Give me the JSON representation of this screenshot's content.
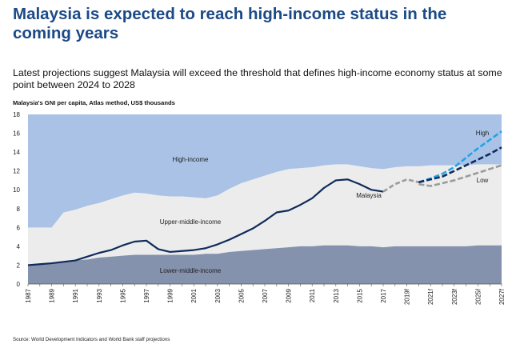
{
  "header": {
    "title": "Malaysia is expected to reach high-income status in the coming years",
    "subtitle": "Latest projections suggest Malaysia will exceed the threshold that defines high-income economy status at some point between 2024 to 2028",
    "units": "Malaysia's GNI per capita, Atlas method, US$ thousands",
    "source": "Source: World Development Indicators and World Bank staff projections"
  },
  "colors": {
    "high_income": "#a9c2e5",
    "upper_middle_income": "#ececec",
    "lower_middle_income": "#8492ae",
    "malaysia": "#0f2b5b",
    "malaysia_projection": "#9b9b9b",
    "high": "#1fa5e6",
    "baseline": "#0f2b5b",
    "low": "#9b9b9b"
  },
  "chart_data": {
    "type": "area",
    "title": "Malaysia is expected to reach high-income status in the coming years",
    "ylabel": "Malaysia's GNI per capita, Atlas method, US$ thousands",
    "ylim": [
      0,
      18
    ],
    "yticks": [
      0,
      2,
      4,
      6,
      8,
      10,
      12,
      14,
      16,
      18
    ],
    "categories": [
      "1987",
      "1988",
      "1989",
      "1990",
      "1991",
      "1992",
      "1993",
      "1994",
      "1995",
      "1996",
      "1997",
      "1998",
      "1999",
      "2000",
      "2001",
      "2002",
      "2003",
      "2004",
      "2005",
      "2006",
      "2007",
      "2008",
      "2009",
      "2010",
      "2011",
      "2012",
      "2013",
      "2014",
      "2015",
      "2016",
      "2017",
      "2018",
      "2019f",
      "2020f",
      "2021f",
      "2022f",
      "2023f",
      "2024f",
      "2025f",
      "2026f",
      "2027f"
    ],
    "tick_labels": [
      "1987",
      "1989",
      "1991",
      "1993",
      "1995",
      "1997",
      "1999",
      "2001",
      "2003",
      "2005",
      "2007",
      "2009",
      "2011",
      "2013",
      "2015",
      "2017",
      "2019f",
      "2021f",
      "2023f",
      "2025f",
      "2027f"
    ],
    "areas": [
      {
        "name": "Lower-middle-income",
        "label": "Lower-middle-income",
        "values": [
          2.0,
          2.1,
          2.2,
          2.3,
          2.5,
          2.6,
          2.8,
          2.9,
          3.0,
          3.1,
          3.1,
          3.1,
          3.1,
          3.1,
          3.1,
          3.2,
          3.2,
          3.4,
          3.5,
          3.6,
          3.7,
          3.8,
          3.9,
          4.0,
          4.0,
          4.1,
          4.1,
          4.1,
          4.0,
          4.0,
          3.9,
          4.0,
          4.0,
          4.0,
          4.0,
          4.0,
          4.0,
          4.0,
          4.1,
          4.1,
          4.1
        ]
      },
      {
        "name": "Upper-middle-income",
        "label": "Upper-middle-income",
        "values": [
          6.0,
          6.0,
          6.0,
          7.6,
          7.9,
          8.3,
          8.6,
          9.0,
          9.4,
          9.7,
          9.6,
          9.4,
          9.3,
          9.3,
          9.2,
          9.1,
          9.4,
          10.1,
          10.7,
          11.1,
          11.5,
          11.9,
          12.2,
          12.3,
          12.4,
          12.6,
          12.7,
          12.7,
          12.5,
          12.3,
          12.2,
          12.4,
          12.5,
          12.5,
          12.6,
          12.6,
          12.6,
          12.6,
          12.7,
          12.7,
          12.7
        ]
      },
      {
        "name": "High-income",
        "label": "High-income",
        "values": [
          18,
          18,
          18,
          18,
          18,
          18,
          18,
          18,
          18,
          18,
          18,
          18,
          18,
          18,
          18,
          18,
          18,
          18,
          18,
          18,
          18,
          18,
          18,
          18,
          18,
          18,
          18,
          18,
          18,
          18,
          18,
          18,
          18,
          18,
          18,
          18,
          18,
          18,
          18,
          18,
          18
        ]
      }
    ],
    "series": [
      {
        "name": "Malaysia",
        "label": "Malaysia",
        "style": "solid",
        "x": [
          "1987",
          "1988",
          "1989",
          "1990",
          "1991",
          "1992",
          "1993",
          "1994",
          "1995",
          "1996",
          "1997",
          "1998",
          "1999",
          "2000",
          "2001",
          "2002",
          "2003",
          "2004",
          "2005",
          "2006",
          "2007",
          "2008",
          "2009",
          "2010",
          "2011",
          "2012",
          "2013",
          "2014",
          "2015",
          "2016",
          "2017"
        ],
        "values": [
          2.0,
          2.1,
          2.2,
          2.35,
          2.5,
          2.9,
          3.3,
          3.6,
          4.1,
          4.5,
          4.6,
          3.7,
          3.4,
          3.5,
          3.6,
          3.8,
          4.2,
          4.7,
          5.3,
          5.9,
          6.7,
          7.6,
          7.8,
          8.4,
          9.1,
          10.2,
          11.0,
          11.1,
          10.6,
          10.0,
          9.8
        ]
      },
      {
        "name": "Malaysia projection",
        "label": "",
        "style": "dashed",
        "x": [
          "2017",
          "2018",
          "2019f",
          "2020f"
        ],
        "values": [
          9.8,
          10.6,
          11.1,
          10.8
        ]
      },
      {
        "name": "High",
        "label": "High",
        "style": "dashed",
        "x": [
          "2020f",
          "2021f",
          "2022f",
          "2023f",
          "2024f",
          "2025f",
          "2026f",
          "2027f"
        ],
        "values": [
          10.8,
          11.2,
          11.7,
          12.4,
          13.4,
          14.4,
          15.3,
          16.2
        ]
      },
      {
        "name": "Baseline",
        "label": "",
        "style": "dashed",
        "x": [
          "2020f",
          "2021f",
          "2022f",
          "2023f",
          "2024f",
          "2025f",
          "2026f",
          "2027f"
        ],
        "values": [
          10.8,
          11.1,
          11.4,
          12.0,
          12.6,
          13.2,
          13.8,
          14.5
        ]
      },
      {
        "name": "Low",
        "label": "Low",
        "style": "dashed",
        "x": [
          "2020f",
          "2021f",
          "2022f",
          "2023f",
          "2024f",
          "2025f",
          "2026f",
          "2027f"
        ],
        "values": [
          10.6,
          10.4,
          10.7,
          11.0,
          11.4,
          11.8,
          12.2,
          12.6
        ]
      }
    ]
  }
}
